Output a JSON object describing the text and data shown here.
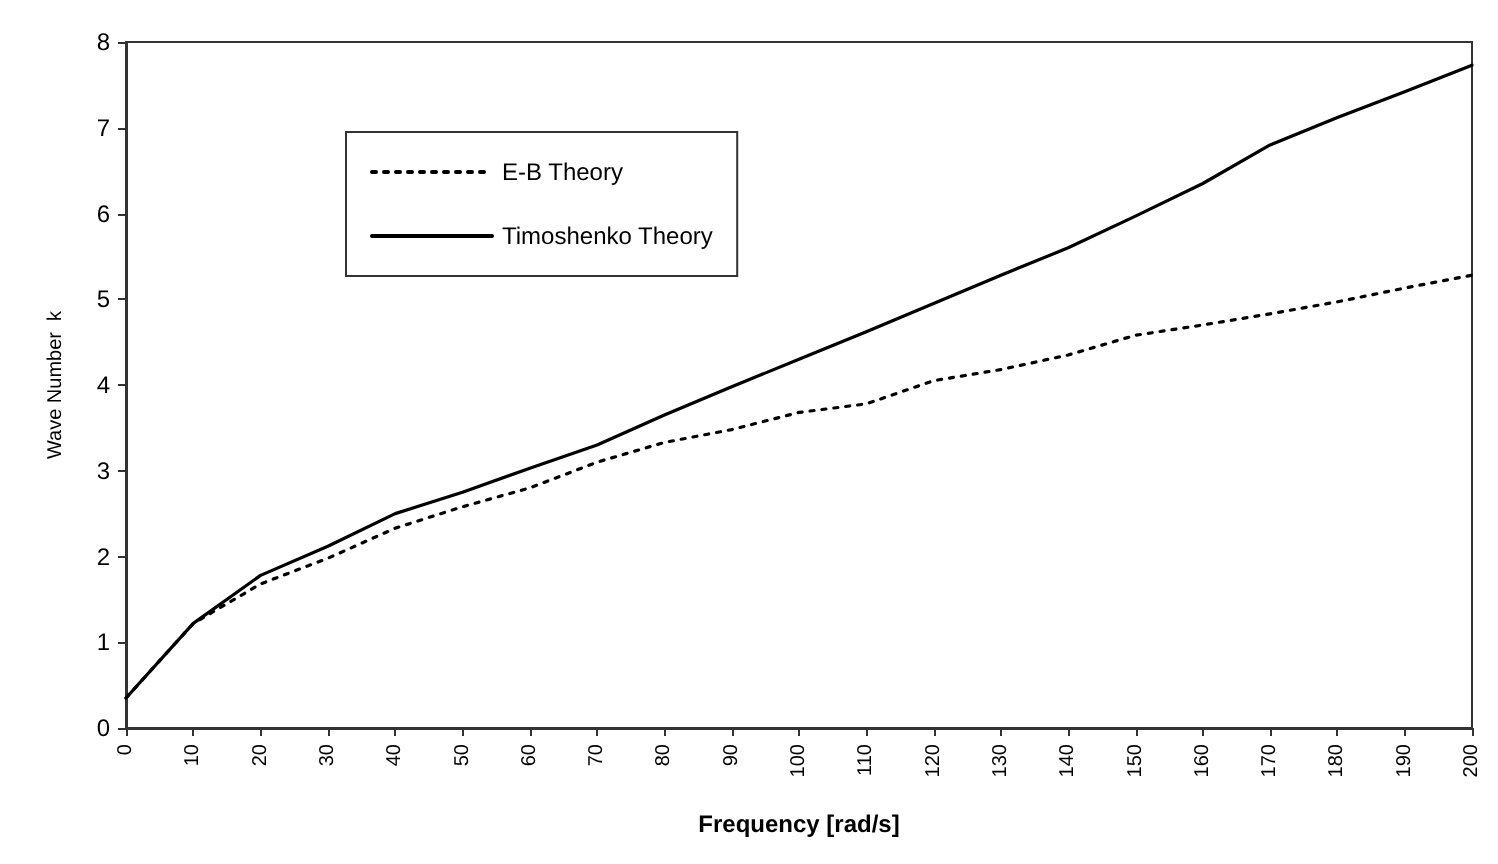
{
  "chart_data": {
    "type": "line",
    "xlabel": "Frequency [rad/s]",
    "ylabel": "Wave Number  k",
    "x": [
      0,
      10,
      20,
      30,
      40,
      50,
      60,
      70,
      80,
      90,
      100,
      110,
      120,
      130,
      140,
      150,
      160,
      170,
      180,
      190,
      200
    ],
    "series": [
      {
        "name": "E-B Theory",
        "color": "#000000",
        "line_style": "dotted",
        "values": [
          0.35,
          1.22,
          1.68,
          1.98,
          2.33,
          2.58,
          2.8,
          3.1,
          3.33,
          3.48,
          3.68,
          3.78,
          4.05,
          4.18,
          4.35,
          4.58,
          4.7,
          4.83,
          4.97,
          5.13,
          5.28
        ]
      },
      {
        "name": "Timoshenko Theory",
        "color": "#000000",
        "line_style": "solid",
        "values": [
          0.35,
          1.22,
          1.78,
          2.12,
          2.5,
          2.75,
          3.03,
          3.3,
          3.65,
          3.98,
          4.3,
          4.62,
          4.95,
          5.28,
          5.6,
          5.97,
          6.35,
          6.8,
          7.12,
          7.42,
          7.73
        ]
      }
    ],
    "xlim": [
      0,
      200
    ],
    "xticks": [
      0,
      10,
      20,
      30,
      40,
      50,
      60,
      70,
      80,
      90,
      100,
      110,
      120,
      130,
      140,
      150,
      160,
      170,
      180,
      190,
      200
    ],
    "ylim": [
      0,
      8
    ],
    "yticks": [
      0,
      1,
      2,
      3,
      4,
      5,
      6,
      7,
      8
    ],
    "grid": false,
    "legend": "top left",
    "marker": "none"
  }
}
